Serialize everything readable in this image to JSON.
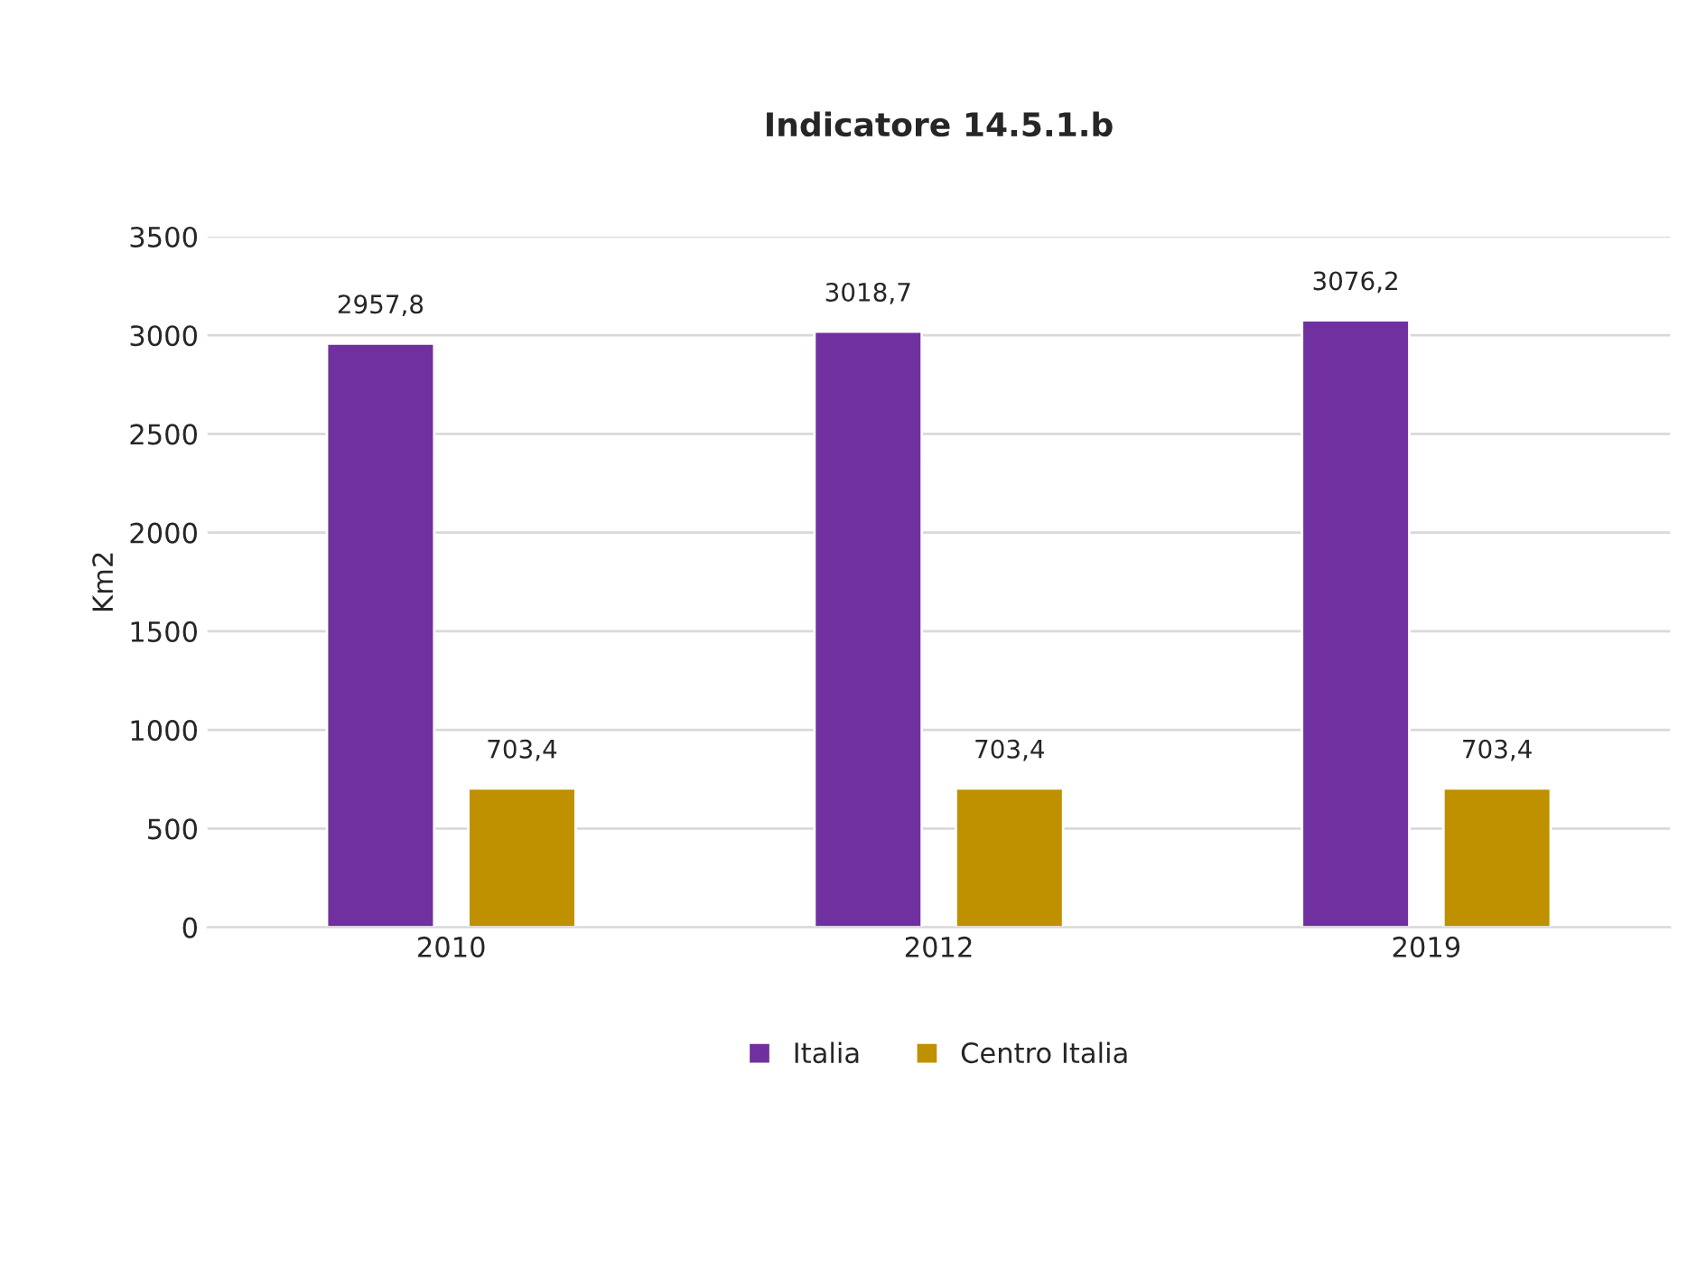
{
  "chart_data": {
    "type": "bar",
    "title": "Indicatore 14.5.1.b",
    "ylabel": "Km2",
    "categories": [
      "2010",
      "2012",
      "2019"
    ],
    "series": [
      {
        "name": "Italia",
        "color": "#7030a0",
        "values": [
          2957.8,
          3018.7,
          3076.2
        ],
        "value_labels": [
          "2957,8",
          "3018,7",
          "3076,2"
        ]
      },
      {
        "name": "Centro Italia",
        "color": "#bf9000",
        "values": [
          703.4,
          703.4,
          703.4
        ],
        "value_labels": [
          "703,4",
          "703,4",
          "703,4"
        ]
      }
    ],
    "ylim": [
      0,
      3500
    ],
    "yticks": [
      0,
      500,
      1000,
      1500,
      2000,
      2500,
      3000,
      3500
    ],
    "grid": "y",
    "legend": "bottom"
  }
}
